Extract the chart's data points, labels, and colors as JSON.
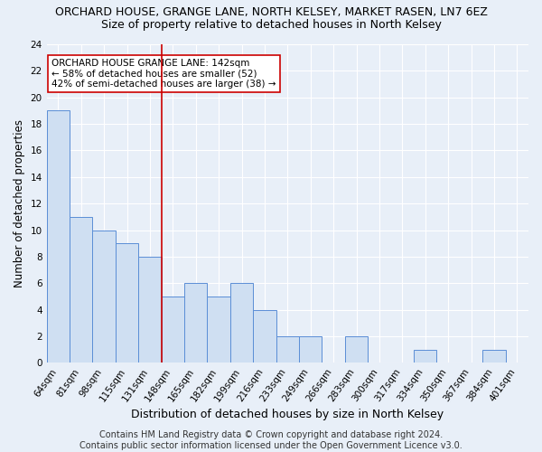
{
  "title": "ORCHARD HOUSE, GRANGE LANE, NORTH KELSEY, MARKET RASEN, LN7 6EZ",
  "subtitle": "Size of property relative to detached houses in North Kelsey",
  "xlabel": "Distribution of detached houses by size in North Kelsey",
  "ylabel": "Number of detached properties",
  "categories": [
    "64sqm",
    "81sqm",
    "98sqm",
    "115sqm",
    "131sqm",
    "148sqm",
    "165sqm",
    "182sqm",
    "199sqm",
    "216sqm",
    "233sqm",
    "249sqm",
    "266sqm",
    "283sqm",
    "300sqm",
    "317sqm",
    "334sqm",
    "350sqm",
    "367sqm",
    "384sqm",
    "401sqm"
  ],
  "values": [
    19,
    11,
    10,
    9,
    8,
    5,
    6,
    5,
    6,
    4,
    2,
    2,
    0,
    2,
    0,
    0,
    1,
    0,
    0,
    1,
    0
  ],
  "bar_color": "#cfdff2",
  "bar_edge_color": "#5b8ed6",
  "background_color": "#e8eff8",
  "grid_color": "#ffffff",
  "vline_x_index": 5,
  "vline_color": "#cc0000",
  "ylim": [
    0,
    24
  ],
  "yticks": [
    0,
    2,
    4,
    6,
    8,
    10,
    12,
    14,
    16,
    18,
    20,
    22,
    24
  ],
  "annotation_text": "ORCHARD HOUSE GRANGE LANE: 142sqm\n← 58% of detached houses are smaller (52)\n42% of semi-detached houses are larger (38) →",
  "annotation_box_color": "#ffffff",
  "annotation_box_edge_color": "#cc0000",
  "footer_text": "Contains HM Land Registry data © Crown copyright and database right 2024.\nContains public sector information licensed under the Open Government Licence v3.0.",
  "title_fontsize": 9,
  "subtitle_fontsize": 9,
  "xlabel_fontsize": 9,
  "ylabel_fontsize": 8.5,
  "tick_fontsize": 7.5,
  "annotation_fontsize": 7.5,
  "footer_fontsize": 7
}
